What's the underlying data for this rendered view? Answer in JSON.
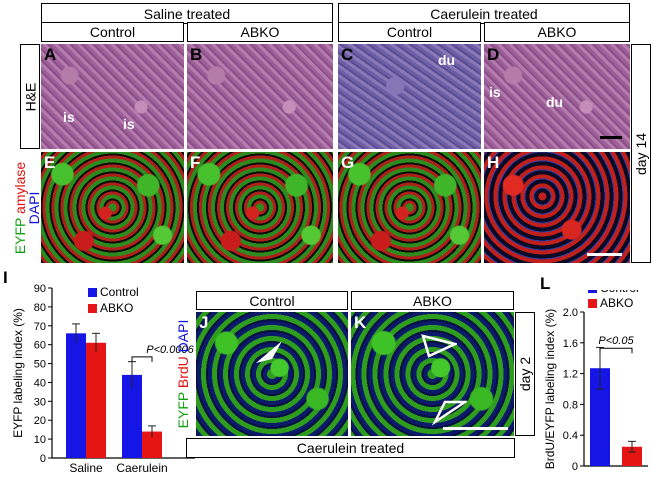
{
  "figure": {
    "header_saline": "Saline treated",
    "header_caerulein": "Caerulein treated",
    "col_control_1": "Control",
    "col_abko_1": "ABKO",
    "col_control_2": "Control",
    "col_abko_2": "ABKO",
    "row_he": "H&E",
    "row_fluor": {
      "eyfp": "EYFP",
      "amylase": "amylase",
      "dapi": "DAPI"
    },
    "day14": "day 14",
    "panels": {
      "A": "A",
      "B": "B",
      "C": "C",
      "D": "D",
      "E": "E",
      "F": "F",
      "G": "G",
      "H": "H",
      "I": "I",
      "J": "J",
      "K": "K",
      "L": "L"
    },
    "annotations": {
      "is1": "is",
      "is2": "is",
      "du1": "du",
      "is3": "is",
      "du2": "du"
    },
    "jk_control": "Control",
    "jk_abko": "ABKO",
    "jk_stain": {
      "eyfp": "EYFP",
      "brdu": "BrdU",
      "dapi": "DAPI"
    },
    "day2": "day 2",
    "caerulein_treated_bottom": "Caerulein treated"
  },
  "chart_data": [
    {
      "type": "bar",
      "panel": "I",
      "ylabel": "EYFP labeling index (%)",
      "categories": [
        "Saline",
        "Caerulein"
      ],
      "series": [
        {
          "name": "Control",
          "values": [
            66,
            44
          ],
          "errors": [
            5,
            7
          ]
        },
        {
          "name": "ABKO",
          "values": [
            61,
            14
          ],
          "errors": [
            5,
            3
          ]
        }
      ],
      "ylim": [
        0,
        90
      ],
      "yticks": [
        "0",
        "10",
        "20",
        "30",
        "40",
        "50",
        "60",
        "70",
        "80",
        "90"
      ],
      "annotation": "P<0.0006",
      "colors": {
        "Control": "#1515e6",
        "ABKO": "#e61515"
      }
    },
    {
      "type": "bar",
      "panel": "L",
      "ylabel": "BrdU/EYFP labeling index (%)",
      "categories": [
        "Control",
        "ABKO"
      ],
      "values": [
        1.27,
        0.25
      ],
      "errors": [
        0.27,
        0.07
      ],
      "ylim": [
        0,
        2.0
      ],
      "yticks": [
        "0",
        "0.4",
        "0.8",
        "1.2",
        "1.6",
        "2.0"
      ],
      "legend": [
        "Control",
        "ABKO"
      ],
      "annotation": "P<0.05",
      "colors": {
        "Control": "#1515e6",
        "ABKO": "#e61515"
      }
    }
  ]
}
